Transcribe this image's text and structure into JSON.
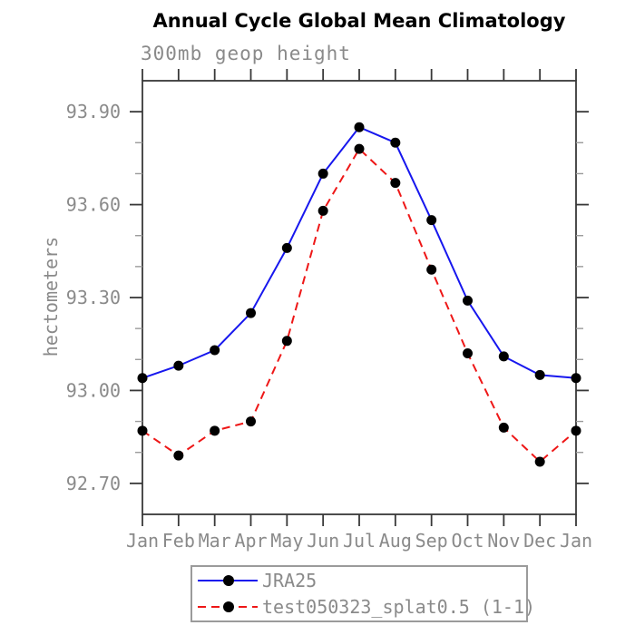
{
  "chart_data": {
    "type": "line",
    "title": "Annual Cycle Global Mean Climatology",
    "subtitle": "300mb geop height",
    "ylabel": "hectometers",
    "xlabel": "",
    "categories": [
      "Jan",
      "Feb",
      "Mar",
      "Apr",
      "May",
      "Jun",
      "Jul",
      "Aug",
      "Sep",
      "Oct",
      "Nov",
      "Dec",
      "Jan"
    ],
    "ylim": [
      92.6,
      94.0
    ],
    "yticks_major": [
      92.7,
      93.0,
      93.3,
      93.6,
      93.9
    ],
    "ytick_labels": [
      "92.70",
      "93.00",
      "93.30",
      "93.60",
      "93.90"
    ],
    "yticks_minor": [
      92.8,
      92.9,
      93.1,
      93.2,
      93.4,
      93.5,
      93.7,
      93.8
    ],
    "grid": false,
    "legend_position": "bottom-center",
    "series": [
      {
        "name": "JRA25",
        "line_style": "solid",
        "color": "#1717ee",
        "marker": "filled-circle",
        "marker_color": "#000000",
        "values": [
          93.04,
          93.08,
          93.13,
          93.25,
          93.46,
          93.7,
          93.85,
          93.8,
          93.55,
          93.29,
          93.11,
          93.05,
          93.04
        ]
      },
      {
        "name": "test050323_splat0.5 (1-1)",
        "line_style": "dashed",
        "color": "#ee1717",
        "marker": "filled-circle",
        "marker_color": "#000000",
        "values": [
          92.87,
          92.79,
          92.87,
          92.9,
          93.16,
          93.58,
          93.78,
          93.67,
          93.39,
          93.12,
          92.88,
          92.77,
          92.87
        ]
      }
    ],
    "colors": {
      "axis": "#383838",
      "minor_tick": "#9a9a9a",
      "tick_label": "#8a8a8a",
      "title": "#000000",
      "legend_border": "#9b9b9b"
    }
  }
}
